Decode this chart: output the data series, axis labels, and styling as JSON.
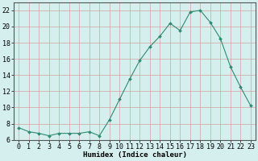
{
  "x": [
    0,
    1,
    2,
    3,
    4,
    5,
    6,
    7,
    8,
    9,
    10,
    11,
    12,
    13,
    14,
    15,
    16,
    17,
    18,
    19,
    20,
    21,
    22,
    23
  ],
  "y": [
    7.5,
    7.0,
    6.8,
    6.5,
    6.8,
    6.8,
    6.8,
    7.0,
    6.5,
    8.5,
    11.0,
    13.5,
    15.8,
    17.5,
    18.8,
    20.4,
    19.5,
    21.8,
    22.0,
    20.5,
    18.5,
    15.0,
    12.5,
    10.2
  ],
  "xlabel": "Humidex (Indice chaleur)",
  "ylabel": "",
  "ylim": [
    6,
    23
  ],
  "xlim": [
    -0.5,
    23.5
  ],
  "yticks": [
    6,
    8,
    10,
    12,
    14,
    16,
    18,
    20,
    22
  ],
  "xticks": [
    0,
    1,
    2,
    3,
    4,
    5,
    6,
    7,
    8,
    9,
    10,
    11,
    12,
    13,
    14,
    15,
    16,
    17,
    18,
    19,
    20,
    21,
    22,
    23
  ],
  "line_color": "#2e8b6e",
  "marker_color": "#2e8b6e",
  "bg_color": "#d5efef",
  "grid_color": "#c0b8b8",
  "label_fontsize": 6.5,
  "tick_fontsize": 6.0
}
